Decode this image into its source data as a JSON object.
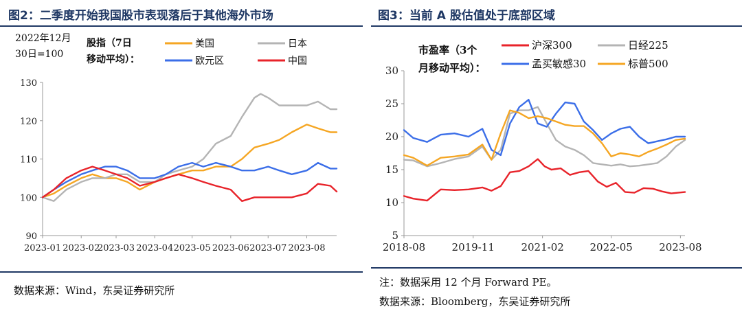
{
  "figures": {
    "left": {
      "title": "图2：二季度开始我国股市表现落后于其他海外市场",
      "source": "数据来源：Wind，东吴证券研究所"
    },
    "right": {
      "title": "图3：当前 A 股估值处于底部区域",
      "note": "注：数据采用 12 个月 Forward PE。",
      "source": "数据来源：Bloomberg，东吴证券研究所"
    }
  },
  "chart_data": [
    {
      "type": "line",
      "base_note": [
        "2022年12月",
        "30日=100"
      ],
      "legend_title": [
        "股指（7日",
        "移动平均）："
      ],
      "legend_placement": "top",
      "ylim": [
        90,
        130
      ],
      "yticks": [
        90,
        100,
        110,
        120,
        130
      ],
      "xlim": [
        "2023-01-01",
        "2023-08-25"
      ],
      "xticks": [
        "2023-01",
        "2023-02",
        "2023-03",
        "2023-04",
        "2023-05",
        "2023-06",
        "2023-07",
        "2023-08"
      ],
      "grid": false,
      "series": [
        {
          "name": "美国",
          "color": "#f5a623",
          "x": [
            "2023-01-01",
            "2023-01-10",
            "2023-01-20",
            "2023-02-01",
            "2023-02-10",
            "2023-02-20",
            "2023-03-01",
            "2023-03-10",
            "2023-03-20",
            "2023-04-01",
            "2023-04-10",
            "2023-04-20",
            "2023-05-01",
            "2023-05-10",
            "2023-05-20",
            "2023-06-01",
            "2023-06-10",
            "2023-06-20",
            "2023-07-01",
            "2023-07-10",
            "2023-07-20",
            "2023-08-01",
            "2023-08-10",
            "2023-08-20",
            "2023-08-25"
          ],
          "y": [
            100,
            101,
            103,
            105,
            106,
            105,
            105,
            104,
            102,
            104,
            105,
            106,
            107,
            107,
            108,
            108,
            110,
            113,
            114,
            115,
            117,
            119,
            118,
            117,
            117
          ]
        },
        {
          "name": "日本",
          "color": "#b4b4b4",
          "x": [
            "2023-01-01",
            "2023-01-10",
            "2023-01-20",
            "2023-02-01",
            "2023-02-10",
            "2023-02-20",
            "2023-03-01",
            "2023-03-10",
            "2023-03-20",
            "2023-04-01",
            "2023-04-10",
            "2023-04-20",
            "2023-05-01",
            "2023-05-10",
            "2023-05-20",
            "2023-06-01",
            "2023-06-10",
            "2023-06-20",
            "2023-06-25",
            "2023-07-01",
            "2023-07-10",
            "2023-07-20",
            "2023-08-01",
            "2023-08-10",
            "2023-08-20",
            "2023-08-25"
          ],
          "y": [
            100,
            99,
            102,
            104,
            105,
            105,
            106,
            106,
            104,
            104,
            106,
            107,
            108,
            110,
            114,
            116,
            121,
            126,
            127,
            126,
            124,
            124,
            124,
            125,
            123,
            123
          ]
        },
        {
          "name": "欧元区",
          "color": "#3b6ee8",
          "x": [
            "2023-01-01",
            "2023-01-10",
            "2023-01-20",
            "2023-02-01",
            "2023-02-10",
            "2023-02-20",
            "2023-03-01",
            "2023-03-10",
            "2023-03-20",
            "2023-04-01",
            "2023-04-10",
            "2023-04-20",
            "2023-05-01",
            "2023-05-10",
            "2023-05-20",
            "2023-06-01",
            "2023-06-10",
            "2023-06-20",
            "2023-07-01",
            "2023-07-10",
            "2023-07-20",
            "2023-08-01",
            "2023-08-10",
            "2023-08-20",
            "2023-08-25"
          ],
          "y": [
            100,
            102,
            104,
            106,
            107,
            108,
            108,
            107,
            105,
            105,
            106,
            108,
            109,
            108,
            109,
            108,
            107,
            107,
            108,
            107,
            106,
            107,
            109,
            107.5,
            107.5
          ]
        },
        {
          "name": "中国",
          "color": "#e8232a",
          "x": [
            "2023-01-01",
            "2023-01-10",
            "2023-01-20",
            "2023-02-01",
            "2023-02-10",
            "2023-02-20",
            "2023-03-01",
            "2023-03-10",
            "2023-03-20",
            "2023-04-01",
            "2023-04-10",
            "2023-04-20",
            "2023-05-01",
            "2023-05-10",
            "2023-05-20",
            "2023-06-01",
            "2023-06-10",
            "2023-06-20",
            "2023-07-01",
            "2023-07-10",
            "2023-07-20",
            "2023-08-01",
            "2023-08-10",
            "2023-08-20",
            "2023-08-25"
          ],
          "y": [
            100,
            102,
            105,
            107,
            108,
            107,
            106,
            105,
            103,
            104,
            105,
            106,
            105,
            104,
            103,
            102,
            99,
            100,
            100,
            100,
            100,
            101,
            103.5,
            103,
            101.5
          ]
        }
      ]
    },
    {
      "type": "line",
      "legend_title": [
        "市盈率（3个",
        "月移动平均）："
      ],
      "legend_placement": "top",
      "ylim": [
        5,
        30
      ],
      "yticks": [
        5,
        10,
        15,
        20,
        25,
        30
      ],
      "xlim": [
        "2018-08-01",
        "2023-08-31"
      ],
      "xticks": [
        "2018-08",
        "2019-11",
        "2021-02",
        "2022-05",
        "2023-08"
      ],
      "grid": false,
      "series": [
        {
          "name": "沪深300",
          "color": "#e8232a",
          "x": [
            "2018-08-01",
            "2018-10-01",
            "2019-01-01",
            "2019-04-01",
            "2019-07-01",
            "2019-10-01",
            "2020-01-01",
            "2020-03-01",
            "2020-05-01",
            "2020-07-01",
            "2020-09-01",
            "2020-11-01",
            "2021-01-01",
            "2021-02-15",
            "2021-04-01",
            "2021-06-01",
            "2021-08-01",
            "2021-10-01",
            "2021-12-01",
            "2022-02-01",
            "2022-04-01",
            "2022-06-01",
            "2022-08-01",
            "2022-10-01",
            "2022-12-01",
            "2023-02-01",
            "2023-04-01",
            "2023-06-01",
            "2023-08-31"
          ],
          "y": [
            11,
            10.6,
            10.3,
            12,
            11.9,
            12,
            12.3,
            11.8,
            12.5,
            14.6,
            14.8,
            15.5,
            16.6,
            15.5,
            15,
            15.2,
            14.2,
            14.6,
            14.8,
            13.2,
            12.4,
            13,
            11.6,
            11.5,
            12.2,
            12.1,
            11.7,
            11.4,
            11.6
          ]
        },
        {
          "name": "日经225",
          "color": "#b4b4b4",
          "x": [
            "2018-08-01",
            "2018-10-01",
            "2019-01-01",
            "2019-04-01",
            "2019-07-01",
            "2019-10-01",
            "2020-01-01",
            "2020-03-01",
            "2020-05-01",
            "2020-07-01",
            "2020-09-01",
            "2020-11-01",
            "2021-01-01",
            "2021-03-01",
            "2021-05-01",
            "2021-07-01",
            "2021-09-01",
            "2021-11-01",
            "2022-01-01",
            "2022-03-01",
            "2022-05-01",
            "2022-07-01",
            "2022-09-01",
            "2022-11-01",
            "2023-01-01",
            "2023-03-01",
            "2023-05-01",
            "2023-07-01",
            "2023-08-31"
          ],
          "y": [
            16.5,
            16.4,
            15.5,
            16,
            16.6,
            17,
            18.5,
            16.5,
            18,
            23.5,
            24,
            24,
            24.5,
            22,
            19.5,
            18.5,
            18,
            17.2,
            16,
            15.8,
            15.6,
            15.8,
            15.5,
            15.6,
            15.8,
            16,
            17,
            18.5,
            19.5
          ]
        },
        {
          "name": "孟买敏感30",
          "color": "#3b6ee8",
          "x": [
            "2018-08-01",
            "2018-10-01",
            "2019-01-01",
            "2019-04-01",
            "2019-07-01",
            "2019-10-01",
            "2020-01-01",
            "2020-03-01",
            "2020-05-01",
            "2020-07-01",
            "2020-09-01",
            "2020-11-01",
            "2021-01-01",
            "2021-03-01",
            "2021-05-01",
            "2021-07-01",
            "2021-09-01",
            "2021-11-01",
            "2022-01-01",
            "2022-03-01",
            "2022-05-01",
            "2022-07-01",
            "2022-09-01",
            "2022-11-01",
            "2023-01-01",
            "2023-03-01",
            "2023-05-01",
            "2023-07-01",
            "2023-08-31"
          ],
          "y": [
            21,
            19.8,
            19.2,
            20.3,
            20.5,
            20,
            21.2,
            18,
            17.2,
            22,
            24.5,
            25.6,
            22,
            21.5,
            23.5,
            25.2,
            25,
            22.3,
            21,
            19.5,
            20.5,
            21.2,
            21.5,
            20,
            19,
            19.3,
            19.6,
            20,
            20
          ]
        },
        {
          "name": "标普500",
          "color": "#f5a623",
          "x": [
            "2018-08-01",
            "2018-10-01",
            "2019-01-01",
            "2019-04-01",
            "2019-07-01",
            "2019-10-01",
            "2020-01-01",
            "2020-03-01",
            "2020-05-01",
            "2020-07-01",
            "2020-09-01",
            "2020-11-01",
            "2021-01-01",
            "2021-03-01",
            "2021-05-01",
            "2021-07-01",
            "2021-09-01",
            "2021-11-01",
            "2022-01-01",
            "2022-03-01",
            "2022-05-01",
            "2022-07-01",
            "2022-09-01",
            "2022-11-01",
            "2023-01-01",
            "2023-03-01",
            "2023-05-01",
            "2023-07-01",
            "2023-08-31"
          ],
          "y": [
            17.2,
            16.8,
            15.6,
            16.8,
            17,
            17.3,
            18.8,
            16.5,
            20.5,
            24,
            23.6,
            22.8,
            23.1,
            22.8,
            22.3,
            21.8,
            21.6,
            21.6,
            20.5,
            19,
            17,
            17.5,
            17.3,
            17,
            17.7,
            18.2,
            18.8,
            19.5,
            19.7
          ]
        }
      ]
    }
  ]
}
